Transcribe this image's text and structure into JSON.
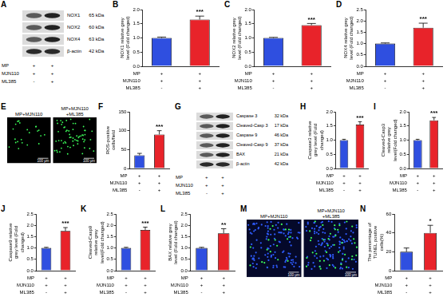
{
  "conditions": [
    {
      "label": "MP",
      "marks": [
        "+",
        "+"
      ]
    },
    {
      "label": "MJN110",
      "marks": [
        "+",
        "+"
      ]
    },
    {
      "label": "ML385",
      "marks": [
        "-",
        "+"
      ]
    }
  ],
  "chart_data": [
    {
      "panel": "B",
      "type": "bar",
      "y_label": "NOX1 relative grey level (Fold changed)",
      "categories": [
        null,
        null
      ],
      "values": [
        1.0,
        1.65
      ],
      "errors": [
        0.03,
        0.12
      ],
      "colors": [
        "#2f4fe0",
        "#e8232a"
      ],
      "ylim": [
        0,
        2
      ],
      "yticks": [
        {
          "value": 0,
          "label": "0.0"
        },
        0.5,
        {
          "value": 1,
          "label": "1.0"
        },
        1.5,
        {
          "value": 2,
          "label": "2.0"
        }
      ],
      "grid": false,
      "tick_labels": "y",
      "annotations": [
        {
          "index": 1,
          "text": "***"
        }
      ]
    },
    {
      "panel": "C",
      "type": "bar",
      "y_label": "NOX2 relative grey level (Fold changed)",
      "categories": [
        null,
        null
      ],
      "values": [
        1.0,
        1.45
      ],
      "errors": [
        0.02,
        0.06
      ],
      "colors": [
        "#2f4fe0",
        "#e8232a"
      ],
      "ylim": [
        0,
        2
      ],
      "yticks": [
        {
          "value": 0,
          "label": "0.0"
        },
        0.5,
        {
          "value": 1,
          "label": "1.0"
        },
        1.5,
        {
          "value": 2,
          "label": "2.0"
        }
      ],
      "grid": false,
      "tick_labels": "y",
      "annotations": [
        {
          "index": 1,
          "text": "***"
        }
      ]
    },
    {
      "panel": "D",
      "type": "bar",
      "y_label": "NOX4 relative grey level (Fold changed)",
      "categories": [
        null,
        null
      ],
      "values": [
        1.0,
        1.7
      ],
      "errors": [
        0.03,
        0.2
      ],
      "colors": [
        "#2f4fe0",
        "#e8232a"
      ],
      "ylim": [
        0,
        2.5
      ],
      "yticks": [
        {
          "value": 0,
          "label": "0.0"
        },
        0.5,
        {
          "value": 1,
          "label": "1.0"
        },
        1.5,
        {
          "value": 2,
          "label": "2.0"
        },
        2.5
      ],
      "grid": false,
      "tick_labels": "y",
      "annotations": [
        {
          "index": 1,
          "text": "***"
        }
      ]
    },
    {
      "panel": "F",
      "type": "bar",
      "y_label": "ROS-positive cells/field",
      "categories": [
        null,
        null
      ],
      "values": [
        35,
        90
      ],
      "errors": [
        5,
        10
      ],
      "colors": [
        "#2f4fe0",
        "#e8232a"
      ],
      "ylim": [
        0,
        150
      ],
      "yticks": [
        0,
        50,
        100,
        150
      ],
      "grid": false,
      "tick_labels": "y",
      "annotations": [
        {
          "index": 1,
          "text": "***"
        }
      ]
    },
    {
      "panel": "H",
      "type": "bar",
      "y_label": "Caspase3 relative grey level (Fold changed)",
      "categories": [
        null,
        null
      ],
      "values": [
        1.0,
        1.55
      ],
      "errors": [
        0.03,
        0.1
      ],
      "colors": [
        "#2f4fe0",
        "#e8232a"
      ],
      "ylim": [
        0,
        2
      ],
      "yticks": [
        {
          "value": 0,
          "label": "0.0"
        },
        0.5,
        {
          "value": 1,
          "label": "1.0"
        },
        1.5,
        {
          "value": 2,
          "label": "2.0"
        }
      ],
      "grid": false,
      "tick_labels": "y",
      "annotations": [
        {
          "index": 1,
          "text": "***"
        }
      ]
    },
    {
      "panel": "I",
      "type": "bar",
      "y_label": "Cleaved-Casp3 relative grey level(Fold changed)",
      "categories": [
        null,
        null
      ],
      "values": [
        1.0,
        1.7
      ],
      "errors": [
        0.03,
        0.1
      ],
      "colors": [
        "#2f4fe0",
        "#e8232a"
      ],
      "ylim": [
        0,
        2
      ],
      "yticks": [
        {
          "value": 0,
          "label": "0.0"
        },
        0.5,
        {
          "value": 1,
          "label": "1.0"
        },
        1.5,
        {
          "value": 2,
          "label": "2.0"
        }
      ],
      "grid": false,
      "tick_labels": "y",
      "annotations": [
        {
          "index": 1,
          "text": "***"
        }
      ]
    },
    {
      "panel": "J",
      "type": "bar",
      "y_label": "Caspase9 relative grey level (Fold changed)",
      "categories": [
        null,
        null
      ],
      "values": [
        1.0,
        1.75
      ],
      "errors": [
        0.03,
        0.15
      ],
      "colors": [
        "#2f4fe0",
        "#e8232a"
      ],
      "ylim": [
        0,
        2.5
      ],
      "yticks": [
        {
          "value": 0,
          "label": "0.0"
        },
        0.5,
        {
          "value": 1,
          "label": "1.0"
        },
        1.5,
        {
          "value": 2,
          "label": "2.0"
        },
        2.5
      ],
      "grid": false,
      "tick_labels": "y",
      "annotations": [
        {
          "index": 1,
          "text": "***"
        }
      ]
    },
    {
      "panel": "K",
      "type": "bar",
      "y_label": "Cleaved-Casp9 relative grey level(Fold changed)",
      "categories": [
        null,
        null
      ],
      "values": [
        1.0,
        1.8
      ],
      "errors": [
        0.03,
        0.12
      ],
      "colors": [
        "#2f4fe0",
        "#e8232a"
      ],
      "ylim": [
        0,
        2.5
      ],
      "yticks": [
        {
          "value": 0,
          "label": "0.0"
        },
        0.5,
        {
          "value": 1,
          "label": "1.0"
        },
        1.5,
        {
          "value": 2,
          "label": "2.0"
        },
        2.5
      ],
      "grid": false,
      "tick_labels": "y",
      "annotations": [
        {
          "index": 1,
          "text": "***"
        }
      ]
    },
    {
      "panel": "L",
      "type": "bar",
      "y_label": "BAX relative grey level (Fold changed)",
      "categories": [
        null,
        null
      ],
      "values": [
        1.0,
        1.65
      ],
      "errors": [
        0.03,
        0.2
      ],
      "colors": [
        "#2f4fe0",
        "#e8232a"
      ],
      "ylim": [
        0,
        2.5
      ],
      "yticks": [
        {
          "value": 0,
          "label": "0.0"
        },
        0.5,
        {
          "value": 1,
          "label": "1.0"
        },
        1.5,
        {
          "value": 2,
          "label": "2.0"
        },
        2.5
      ],
      "grid": false,
      "tick_labels": "y",
      "annotations": [
        {
          "index": 1,
          "text": "**"
        }
      ]
    },
    {
      "panel": "N",
      "type": "bar",
      "y_label": "The percentage of TUNEL positive cells(%)",
      "categories": [
        null,
        null
      ],
      "values": [
        20,
        40
      ],
      "errors": [
        4,
        8
      ],
      "colors": [
        "#2f4fe0",
        "#e8232a"
      ],
      "ylim": [
        0,
        60
      ],
      "yticks": [
        0,
        20,
        40,
        60
      ],
      "grid": false,
      "tick_labels": "y",
      "annotations": [
        {
          "index": 1,
          "text": "*"
        }
      ]
    }
  ],
  "blots": [
    {
      "panel": "A",
      "bands": [
        {
          "name": "NOX1",
          "size": "65 kDa"
        },
        {
          "name": "NOX2",
          "size": "60 kDa"
        },
        {
          "name": "NOX4",
          "size": "63 kDa"
        },
        {
          "name": "β-actin",
          "size": "42 kDa"
        }
      ]
    },
    {
      "panel": "G",
      "bands": [
        {
          "name": "Caspase 3",
          "size": "32 kDa"
        },
        {
          "name": "Cleaved-Casp 3",
          "size": "17 kDa"
        },
        {
          "name": "Caspase 9",
          "size": "46 kDa"
        },
        {
          "name": "Cleaved-Casp 9",
          "size": "37 kDa"
        },
        {
          "name": "BAX",
          "size": "21 kDa"
        },
        {
          "name": "β-actin",
          "size": "42 kDa"
        }
      ]
    }
  ],
  "images": [
    {
      "panel": "E",
      "stain": "ROS",
      "scale_bar": "100 μm",
      "fields": [
        "MP+MJN110",
        "MP+MJN110 +ML385"
      ]
    },
    {
      "panel": "M",
      "stain": "TUNEL",
      "scale_bar": "100 μm",
      "fields": [
        "MP+MJN110",
        "MP+MJN110 +ML385"
      ]
    }
  ]
}
